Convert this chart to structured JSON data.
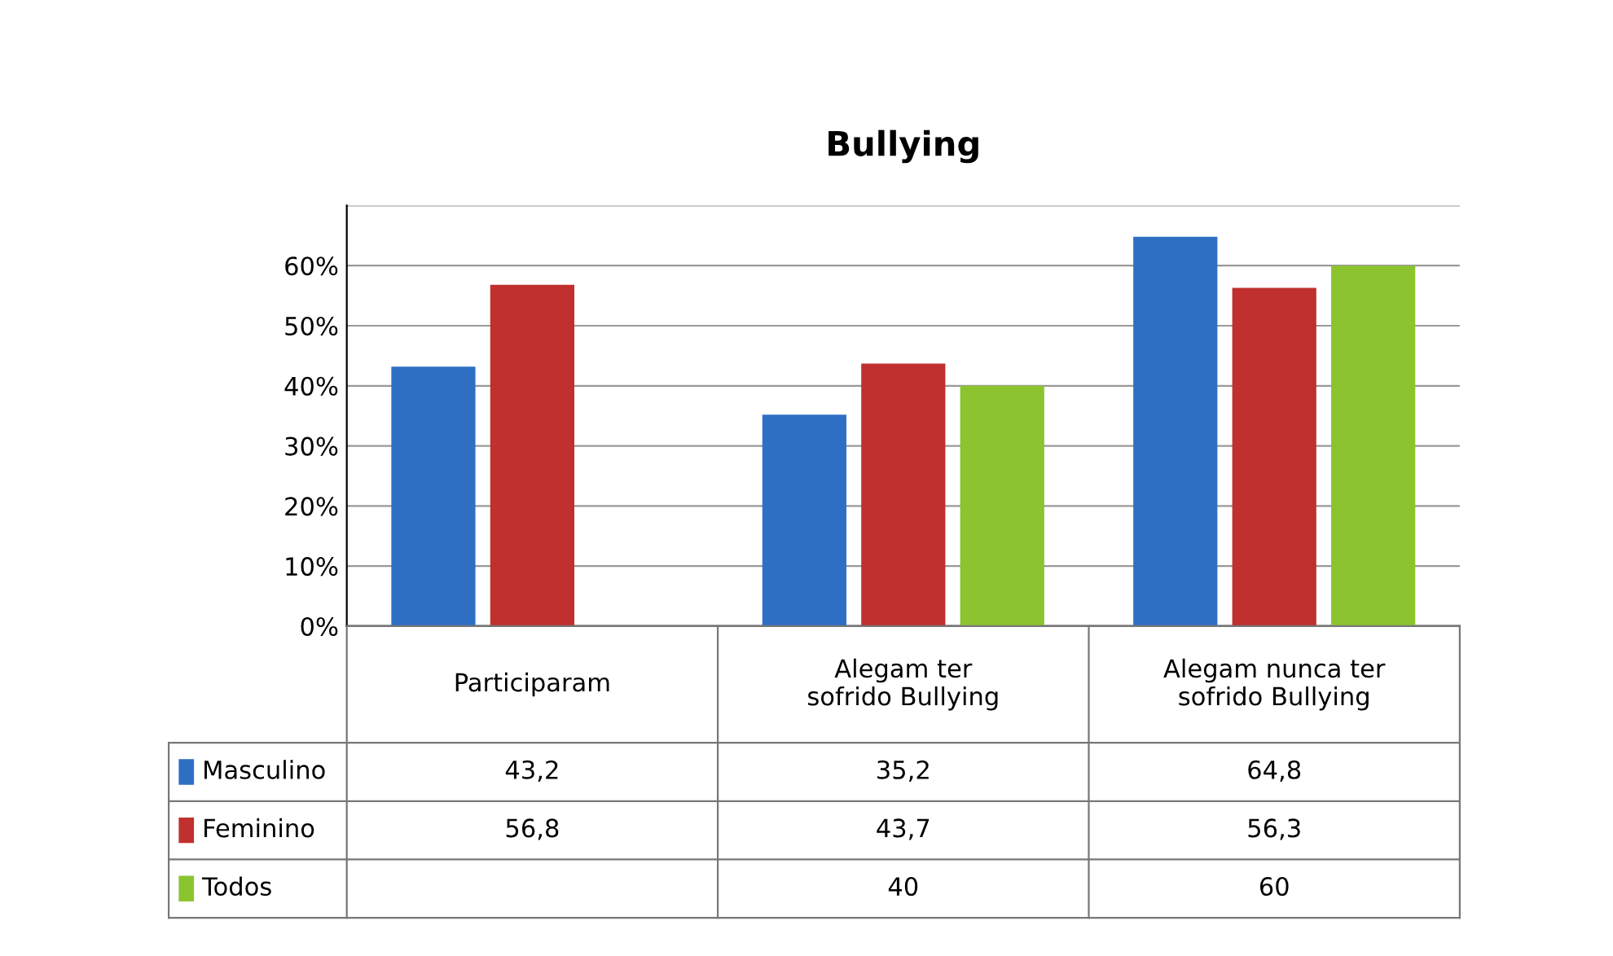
{
  "chart_data": {
    "type": "bar",
    "title": "Bullying",
    "categories": [
      "Participaram",
      "Alegam ter sofrido Bullying",
      "Alegam nunca ter sofrido Bullying"
    ],
    "series": [
      {
        "name": "Masculino",
        "color": "#2e6fc4",
        "values": [
          43.2,
          35.2,
          64.8
        ],
        "value_labels": [
          "43,2",
          "35,2",
          "64,8"
        ]
      },
      {
        "name": "Feminino",
        "color": "#c0302e",
        "values": [
          56.8,
          43.7,
          56.3
        ],
        "value_labels": [
          "56,8",
          "43,7",
          "56,3"
        ]
      },
      {
        "name": "Todos",
        "color": "#8cc430",
        "values": [
          null,
          40,
          60
        ],
        "value_labels": [
          null,
          "40",
          "60"
        ]
      }
    ],
    "ylim": [
      0,
      70
    ],
    "yticks": [
      {
        "value": 0,
        "label": "0%"
      },
      {
        "value": 10,
        "label": "10%"
      },
      {
        "value": 20,
        "label": "20%"
      },
      {
        "value": 30,
        "label": "30%"
      },
      {
        "value": 40,
        "label": "40%"
      },
      {
        "value": 50,
        "label": "50%"
      },
      {
        "value": 60,
        "label": "60%"
      },
      {
        "value": 70,
        "label": null
      }
    ],
    "grid": "y",
    "legend": "bottom left"
  }
}
